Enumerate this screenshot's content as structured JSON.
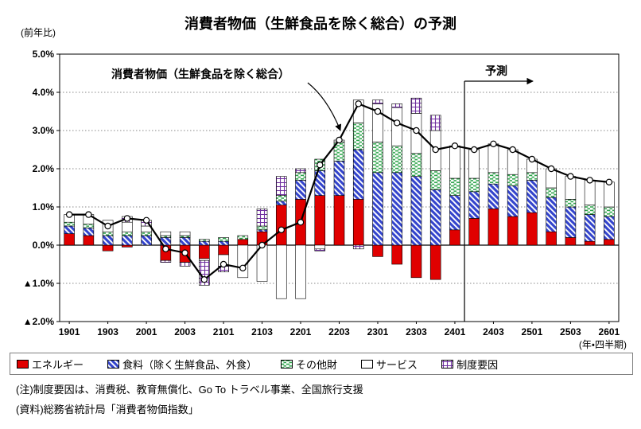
{
  "labels": {
    "title": "消費者物価（生鮮食品を除く総合）の予測",
    "y_unit": "(前年比)",
    "x_unit": "(年・四半期)"
  },
  "notes": [
    "(注)制度要因は、消費税、教育無償化、Go To トラベル事業、全国旅行支援",
    "(資料)総務省統計局「消費者物価指数」"
  ],
  "legend": [
    {
      "key": "energy",
      "label": "エネルギー",
      "color": "#e00000",
      "pattern": "solid"
    },
    {
      "key": "food",
      "label": "食料（除く生鮮食品、外食）",
      "color": "#3344cc",
      "pattern": "diagonal"
    },
    {
      "key": "other-goods",
      "label": "その他財",
      "color": "#2ca44a",
      "pattern": "dash"
    },
    {
      "key": "services",
      "label": "サービス",
      "color": "#ffffff",
      "pattern": "plain"
    },
    {
      "key": "policy-factors",
      "label": "制度要因",
      "color": "#7030a0",
      "pattern": "grid"
    }
  ],
  "chart_data": {
    "type": "bar",
    "subtype": "stacked-contributions-with-total-line",
    "title": "消費者物価（生鮮食品を除く総合）の予測",
    "annotation": "消費者物価（生鮮食品を除く総合）",
    "forecast_label": "予測",
    "forecast_start_index": 21,
    "ylim": [
      -2.0,
      5.0
    ],
    "yticks": [
      5,
      4,
      3,
      2,
      1,
      0,
      -1,
      -2
    ],
    "ytick_labels": [
      "5.0%",
      "4.0%",
      "3.0%",
      "2.0%",
      "1.0%",
      "0.0%",
      "▲1.0%",
      "▲2.0%"
    ],
    "label_every": 2,
    "x": [
      "1901",
      "1902",
      "1903",
      "1904",
      "2001",
      "2002",
      "2003",
      "2004",
      "2101",
      "2102",
      "2103",
      "2104",
      "2201",
      "2202",
      "2203",
      "2204",
      "2301",
      "2302",
      "2303",
      "2304",
      "2401",
      "2402",
      "2403",
      "2404",
      "2501",
      "2502",
      "2503",
      "2504",
      "2601"
    ],
    "series": [
      {
        "name": "エネルギー",
        "values": [
          0.3,
          0.25,
          -0.15,
          -0.05,
          0.0,
          -0.4,
          -0.45,
          -0.35,
          -0.25,
          0.15,
          0.35,
          1.05,
          1.2,
          1.3,
          1.3,
          1.2,
          -0.3,
          -0.5,
          -0.85,
          -0.9,
          0.4,
          0.7,
          0.95,
          0.75,
          0.85,
          0.35,
          0.2,
          0.1,
          0.15
        ]
      },
      {
        "name": "食料（除く生鮮食品、外食）",
        "values": [
          0.2,
          0.2,
          0.25,
          0.25,
          0.25,
          0.2,
          0.2,
          0.1,
          0.1,
          0.0,
          0.05,
          0.1,
          0.5,
          0.65,
          0.9,
          1.3,
          1.9,
          1.9,
          1.8,
          1.45,
          0.9,
          0.7,
          0.65,
          0.8,
          0.85,
          0.9,
          0.8,
          0.7,
          0.6
        ]
      },
      {
        "name": "その他財",
        "values": [
          0.1,
          0.1,
          0.1,
          0.1,
          0.1,
          0.05,
          0.05,
          0.05,
          0.1,
          0.1,
          0.1,
          0.15,
          0.2,
          0.3,
          0.5,
          0.7,
          0.8,
          0.7,
          0.6,
          0.5,
          0.45,
          0.35,
          0.3,
          0.3,
          0.2,
          0.25,
          0.2,
          0.25,
          0.25
        ]
      },
      {
        "name": "サービス",
        "values": [
          0.2,
          0.25,
          0.3,
          0.25,
          0.15,
          0.1,
          0.1,
          -0.05,
          -0.3,
          -0.85,
          -0.95,
          -1.4,
          -1.4,
          -0.1,
          0.05,
          0.6,
          1.0,
          1.0,
          1.05,
          1.05,
          0.85,
          0.75,
          0.75,
          0.65,
          0.35,
          0.5,
          0.6,
          0.65,
          0.65
        ]
      },
      {
        "name": "制度要因",
        "values": [
          0.0,
          0.0,
          0.0,
          0.15,
          0.15,
          -0.05,
          -0.1,
          -0.65,
          -0.15,
          0.0,
          0.45,
          0.5,
          0.1,
          -0.05,
          0.0,
          -0.1,
          0.1,
          0.1,
          0.4,
          0.4,
          0.0,
          0.0,
          0.0,
          0.0,
          0.0,
          0.0,
          0.0,
          0.0,
          0.0
        ]
      }
    ],
    "line": {
      "name": "消費者物価（生鮮食品を除く総合）",
      "values": [
        0.8,
        0.8,
        0.5,
        0.7,
        0.65,
        -0.1,
        -0.2,
        -0.9,
        -0.5,
        -0.6,
        0.0,
        0.4,
        0.6,
        2.1,
        2.75,
        3.7,
        3.5,
        3.2,
        3.0,
        2.5,
        2.6,
        2.5,
        2.65,
        2.5,
        2.25,
        2.0,
        1.8,
        1.7,
        1.65
      ]
    }
  }
}
